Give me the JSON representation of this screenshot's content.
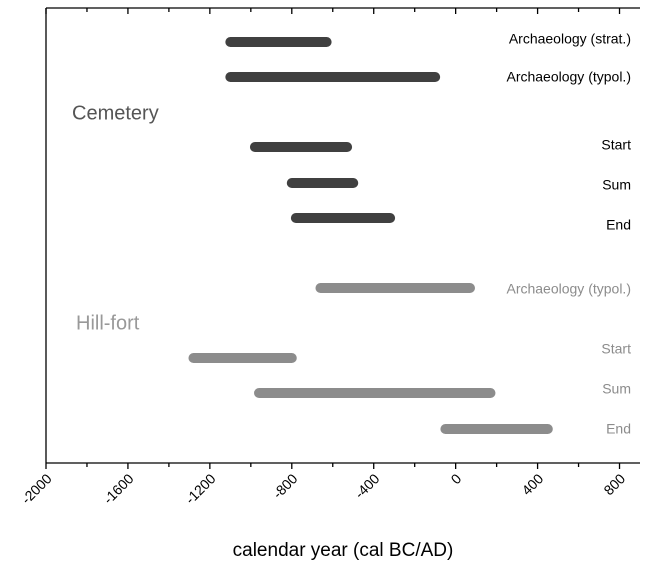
{
  "chart_data": {
    "type": "range-bar",
    "xlabel": "calendar year (cal BC/AD)",
    "xlim": [
      -2000,
      900
    ],
    "xticks": [
      -2000,
      -1600,
      -1200,
      -800,
      -400,
      0,
      400,
      800
    ],
    "minor_xticks": [
      -1800,
      -1400,
      -1000,
      -600,
      -200,
      200,
      600
    ],
    "series": [
      {
        "name": "Cemetery",
        "color": "#404040",
        "label_color": "#000000",
        "name_color": "#555555",
        "categories": [
          "Archaeology (strat.)",
          "Archaeology (typol.)",
          "Start",
          "Sum",
          "End"
        ],
        "values": [
          [
            -1100,
            -630
          ],
          [
            -1100,
            -100
          ],
          [
            -980,
            -530
          ],
          [
            -800,
            -500
          ],
          [
            -780,
            -320
          ]
        ]
      },
      {
        "name": "Hill-fort",
        "color": "#8c8c8c",
        "label_color": "#8c8c8c",
        "name_color": "#999999",
        "categories": [
          "Archaeology (typol.)",
          "Start",
          "Sum",
          "End"
        ],
        "values": [
          [
            -660,
            70
          ],
          [
            -1280,
            -800
          ],
          [
            -960,
            170
          ],
          [
            -50,
            450
          ]
        ]
      }
    ]
  }
}
